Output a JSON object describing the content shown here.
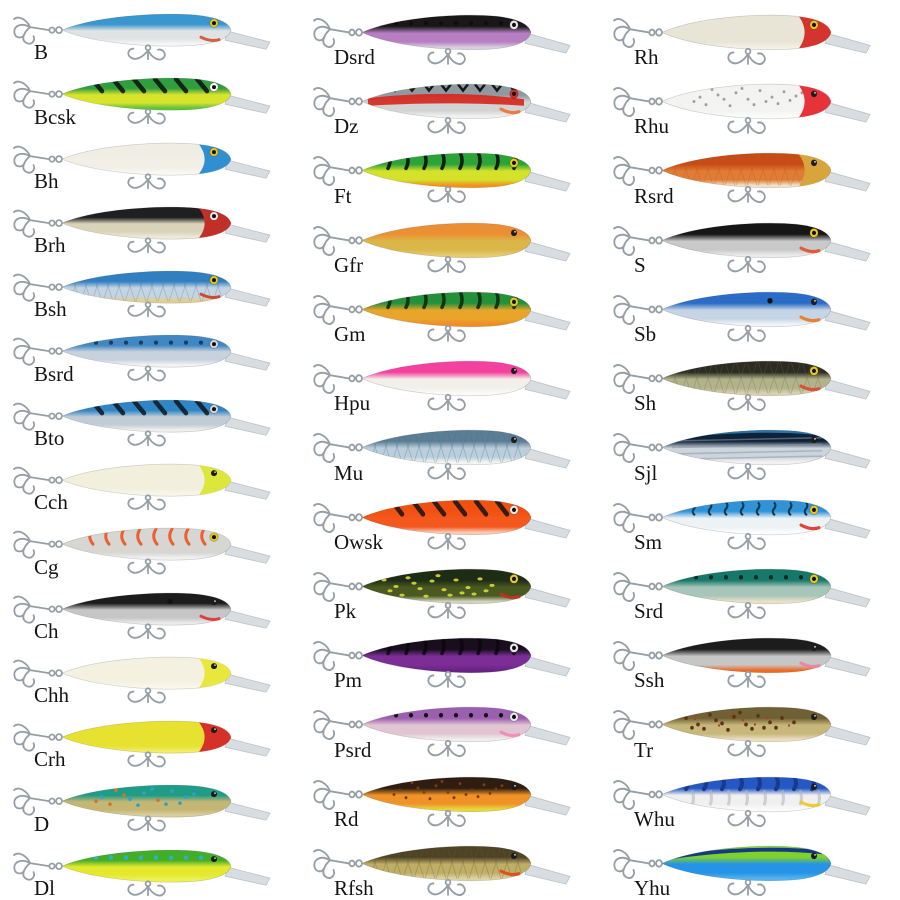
{
  "style": {
    "page_background": "#ffffff",
    "label_color": "#141414",
    "hook_color": "#979fa6",
    "lip_color": "#c2cbd2"
  },
  "columns": [
    {
      "name": "left",
      "items": [
        {
          "code": "B",
          "back": "#3a96cf",
          "body": "#dfe3e4",
          "belly": "#f6f7f5",
          "head": "",
          "eye": "#e8c81e",
          "pattern": "none",
          "pc": "",
          "pc2": "",
          "accent": "#d4502a"
        },
        {
          "code": "Bcsk",
          "back": "#2f9e3f",
          "body": "#d8e32b",
          "belly": "#63c43c",
          "head": "",
          "eye": "#ffffff",
          "pattern": "dstripes",
          "pc": "#101010",
          "pc2": "",
          "accent": ""
        },
        {
          "code": "Bh",
          "back": "#efede4",
          "body": "#f1efe6",
          "belly": "#f9f8f2",
          "head": "#2f8fd0",
          "eye": "#e8c81e",
          "pattern": "none",
          "pc": "",
          "pc2": "",
          "accent": ""
        },
        {
          "code": "Brh",
          "back": "#1f1f1f",
          "body": "#d9d3ba",
          "belly": "#eee9d8",
          "head": "#c03028",
          "eye": "#e8e8e8",
          "pattern": "none",
          "pc": "",
          "pc2": "",
          "accent": ""
        },
        {
          "code": "Bsh",
          "back": "#2f80c2",
          "body": "#c4d4e2",
          "belly": "#e3cf92",
          "head": "",
          "eye": "#e8c81e",
          "pattern": "scales",
          "pc": "#5a7c9c",
          "pc2": "",
          "accent": "#cc3a20"
        },
        {
          "code": "Bsrd",
          "back": "#3f88c2",
          "body": "#c8d2de",
          "belly": "#f2f3f3",
          "head": "",
          "eye": "#d8d8d8",
          "pattern": "spots",
          "pc": "#1c3c60",
          "pc2": "",
          "accent": ""
        },
        {
          "code": "Bto",
          "back": "#2e86c6",
          "body": "#c2ccd6",
          "belly": "#efefef",
          "head": "",
          "eye": "#d8d8d8",
          "pattern": "dstripes",
          "pc": "#0e161e",
          "pc2": "",
          "accent": ""
        },
        {
          "code": "Cch",
          "back": "#f2efdc",
          "body": "#f2efdc",
          "belly": "#f8f6ea",
          "head": "#dde63a",
          "eye": "none",
          "pattern": "none",
          "pc": "",
          "pc2": "",
          "accent": ""
        },
        {
          "code": "Cg",
          "back": "#d6d7d3",
          "body": "#d6d7d3",
          "belly": "#f1f1ef",
          "head": "",
          "eye": "#e8c81e",
          "pattern": "squiggle",
          "pc": "#f0521e",
          "pc2": "",
          "accent": ""
        },
        {
          "code": "Ch",
          "back": "#1c1c1c",
          "body": "#c6c6c6",
          "belly": "#ebebeb",
          "head": "",
          "eye": "none",
          "pattern": "dot",
          "pc": "#111111",
          "pc2": "",
          "accent": "#e03030"
        },
        {
          "code": "Chh",
          "back": "#f4f1e0",
          "body": "#f4f1e0",
          "belly": "#faf8ec",
          "head": "#e9e63e",
          "eye": "none",
          "pattern": "none",
          "pc": "",
          "pc2": "",
          "accent": ""
        },
        {
          "code": "Crh",
          "back": "#e7e22f",
          "body": "#e7e22f",
          "belly": "#f0ec66",
          "head": "#d53129",
          "eye": "none",
          "pattern": "none",
          "pc": "",
          "pc2": "",
          "accent": ""
        },
        {
          "code": "D",
          "back": "#1f9c86",
          "body": "#c6b674",
          "belly": "#d8cf9c",
          "head": "",
          "eye": "none",
          "pattern": "spots2",
          "pc": "#2fa0cc",
          "pc2": "#d0742a",
          "accent": ""
        },
        {
          "code": "Dl",
          "back": "#42ad28",
          "body": "#e4e92e",
          "belly": "#eef059",
          "head": "",
          "eye": "none",
          "pattern": "spots",
          "pc": "#28b2d8",
          "pc2": "",
          "accent": ""
        }
      ]
    },
    {
      "name": "middle",
      "items": [
        {
          "code": "Dsrd",
          "back": "#181818",
          "body": "#b77fc2",
          "belly": "#d8cfde",
          "head": "",
          "eye": "#e8e8e8",
          "pattern": "spots",
          "pc": "#0e0e0e",
          "pc2": "",
          "accent": ""
        },
        {
          "code": "Dz",
          "back": "#8f9aa0",
          "body": "#d2d4d4",
          "belly": "#f1f1f1",
          "head": "",
          "eye": "#d03028",
          "pattern": "zigzag",
          "pc": "#15171a",
          "pc2": "#d6281e",
          "accent": "#f07030"
        },
        {
          "code": "Ft",
          "back": "#2aa337",
          "body": "#d6e229",
          "belly": "#f2921d",
          "head": "",
          "eye": "#e8c81e",
          "pattern": "vbars",
          "pc": "#101010",
          "pc2": "",
          "accent": ""
        },
        {
          "code": "Gfr",
          "back": "#ec8f33",
          "body": "#dab748",
          "belly": "#e6cb72",
          "head": "",
          "eye": "none",
          "pattern": "none",
          "pc": "",
          "pc2": "",
          "accent": ""
        },
        {
          "code": "Gm",
          "back": "#23903a",
          "body": "#e9a52a",
          "belly": "#f08c26",
          "head": "",
          "eye": "#e8c81e",
          "pattern": "vbars",
          "pc": "#0e2a12",
          "pc2": "",
          "accent": ""
        },
        {
          "code": "Hpu",
          "back": "#f4409e",
          "body": "#f2f0ea",
          "belly": "#fbfaf6",
          "head": "",
          "eye": "none",
          "pattern": "none",
          "pc": "",
          "pc2": "",
          "accent": ""
        },
        {
          "code": "Mu",
          "back": "#5d7d94",
          "body": "#bccedb",
          "belly": "#f4f4f1",
          "head": "",
          "eye": "none",
          "pattern": "scales",
          "pc": "#2e7d8f",
          "pc2": "",
          "accent": ""
        },
        {
          "code": "Owsk",
          "back": "#f2500f",
          "body": "#f4581c",
          "belly": "#f8c8b2",
          "head": "",
          "eye": "#e8e8e8",
          "pattern": "dstripes",
          "pc": "#141414",
          "pc2": "",
          "accent": ""
        },
        {
          "code": "Pk",
          "back": "#1d2c14",
          "body": "#49591f",
          "belly": "#d2d2bc",
          "head": "",
          "eye": "#e6c832",
          "pattern": "mottle",
          "pc": "#d8d83a",
          "pc2": "",
          "accent": "#c03020"
        },
        {
          "code": "Pm",
          "back": "#170f1c",
          "body": "#7c2d96",
          "belly": "#6a2384",
          "head": "",
          "eye": "#e8e8e8",
          "pattern": "vbars",
          "pc": "#0e0612",
          "pc2": "",
          "accent": ""
        },
        {
          "code": "Psrd",
          "back": "#9a5fae",
          "body": "#e2c5d3",
          "belly": "#edefec",
          "head": "",
          "eye": "#e8e8e8",
          "pattern": "spots",
          "pc": "#141414",
          "pc2": "",
          "accent": "#f08ab0"
        },
        {
          "code": "Rd",
          "back": "#2e1d10",
          "body": "#f09228",
          "belly": "#e6d83c",
          "head": "",
          "eye": "none",
          "pattern": "speckles",
          "pc": "#7a3c14",
          "pc2": "",
          "accent": ""
        },
        {
          "code": "Rfsh",
          "back": "#4f4326",
          "body": "#beae66",
          "belly": "#dcd2a2",
          "head": "",
          "eye": "none",
          "pattern": "scales",
          "pc": "#6a5c30",
          "pc2": "",
          "accent": "#e04818"
        }
      ]
    },
    {
      "name": "right",
      "items": [
        {
          "code": "Rh",
          "back": "#e8e4d6",
          "body": "#e8e4d6",
          "belly": "#f3f0e6",
          "head": "#d5332d",
          "eye": "#e8c81e",
          "pattern": "none",
          "pc": "",
          "pc2": "",
          "accent": ""
        },
        {
          "code": "Rhu",
          "back": "#f3f3f1",
          "body": "#f3f3f1",
          "belly": "#fbfbfa",
          "head": "#e6333a",
          "eye": "none",
          "pattern": "speckles",
          "pc": "#9aa0a4",
          "pc2": "",
          "accent": ""
        },
        {
          "code": "Rsrd",
          "back": "#c84b15",
          "body": "#e07c35",
          "belly": "#f0e2cc",
          "head": "#d8a43c",
          "eye": "none",
          "pattern": "scales",
          "pc": "#b86028",
          "pc2": "",
          "accent": ""
        },
        {
          "code": "S",
          "back": "#161616",
          "body": "#c9c9c9",
          "belly": "#ebebeb",
          "head": "",
          "eye": "#e8c81e",
          "pattern": "none",
          "pc": "",
          "pc2": "",
          "accent": "#e05028"
        },
        {
          "code": "Sb",
          "back": "#2a6cc6",
          "body": "#c5d5e5",
          "belly": "#f2f4f6",
          "head": "",
          "eye": "none",
          "pattern": "dot",
          "pc": "#111111",
          "pc2": "",
          "accent": "#e87820"
        },
        {
          "code": "Sh",
          "back": "#2c2c22",
          "body": "#b2b38a",
          "belly": "#d7d1b0",
          "head": "",
          "eye": "#e8c81e",
          "pattern": "scales",
          "pc": "#6c6c4c",
          "pc2": "",
          "accent": "#d84830"
        },
        {
          "code": "Sjl",
          "back": "#0e2238",
          "body": "#ccd4dc",
          "belly": "#f2f2f2",
          "head": "",
          "eye": "none",
          "pattern": "streaks",
          "pc": "#8a9aa8",
          "pc2": "#2f86c8",
          "accent": ""
        },
        {
          "code": "Sm",
          "back": "#2f93d8",
          "body": "#edf2f5",
          "belly": "#fbfcfd",
          "head": "",
          "eye": "#e8c81e",
          "pattern": "squigglespots",
          "pc": "#102a3c",
          "pc2": "",
          "accent": "#e03024"
        },
        {
          "code": "Srd",
          "back": "#15796a",
          "body": "#a8c5ba",
          "belly": "#e8e1c4",
          "head": "",
          "eye": "#e8c81e",
          "pattern": "spots",
          "pc": "#0c2a24",
          "pc2": "",
          "accent": ""
        },
        {
          "code": "Ssh",
          "back": "#1c1c1c",
          "body": "#c6c6c6",
          "belly": "#ef6a24",
          "head": "",
          "eye": "none",
          "pattern": "none",
          "pc": "",
          "pc2": "",
          "accent": "#f080a0"
        },
        {
          "code": "Tr",
          "back": "#6f6134",
          "body": "#c8b77a",
          "belly": "#e9dec0",
          "head": "",
          "eye": "none",
          "pattern": "trout",
          "pc": "#5a3416",
          "pc2": "#c23222",
          "accent": ""
        },
        {
          "code": "Whu",
          "back": "#2458c4",
          "body": "#f0f0f0",
          "belly": "#fafafa",
          "head": "",
          "eye": "none",
          "pattern": "vbars2",
          "pc": "#1a3a8c",
          "pc2": "#b4b8be",
          "accent": "#e8c92c"
        },
        {
          "code": "Yhu",
          "back": "#7fd228",
          "body": "#2593e8",
          "belly": "#54b2ec",
          "head": "",
          "eye": "none",
          "pattern": "stripe",
          "pc": "#10308c",
          "pc2": "",
          "accent": ""
        }
      ]
    }
  ]
}
